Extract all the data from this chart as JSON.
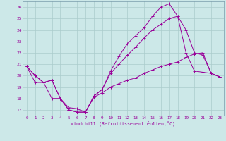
{
  "xlabel": "Windchill (Refroidissement éolien,°C)",
  "background_color": "#cce8e8",
  "grid_color": "#aacccc",
  "line_color": "#990099",
  "x_values": [
    0,
    1,
    2,
    3,
    4,
    5,
    6,
    7,
    8,
    9,
    10,
    11,
    12,
    13,
    14,
    15,
    16,
    17,
    18,
    19,
    20,
    21,
    22,
    23
  ],
  "line1": [
    20.8,
    20.0,
    19.4,
    19.6,
    18.0,
    17.0,
    16.8,
    16.8,
    18.2,
    18.8,
    20.4,
    21.7,
    22.8,
    23.5,
    24.2,
    25.2,
    26.0,
    26.3,
    25.2,
    22.0,
    20.4,
    20.3,
    20.2,
    19.9
  ],
  "line2": [
    20.8,
    20.0,
    19.4,
    19.6,
    18.0,
    17.0,
    16.8,
    16.8,
    18.2,
    18.8,
    20.2,
    21.0,
    21.8,
    22.5,
    23.3,
    24.0,
    24.5,
    25.0,
    25.2,
    24.0,
    22.0,
    21.8,
    20.2,
    19.9
  ],
  "line3": [
    20.8,
    19.4,
    19.4,
    18.0,
    18.0,
    17.2,
    17.1,
    16.8,
    18.1,
    18.5,
    19.0,
    19.3,
    19.6,
    19.8,
    20.2,
    20.5,
    20.8,
    21.0,
    21.2,
    21.6,
    21.9,
    22.0,
    20.2,
    19.9
  ],
  "ylim": [
    16.5,
    26.5
  ],
  "xlim": [
    -0.5,
    23.5
  ],
  "yticks": [
    17,
    18,
    19,
    20,
    21,
    22,
    23,
    24,
    25,
    26
  ],
  "xticks": [
    0,
    1,
    2,
    3,
    4,
    5,
    6,
    7,
    8,
    9,
    10,
    11,
    12,
    13,
    14,
    15,
    16,
    17,
    18,
    19,
    20,
    21,
    22,
    23
  ]
}
